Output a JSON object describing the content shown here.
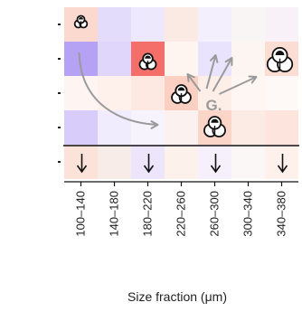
{
  "chart_data": {
    "type": "heatmap",
    "title": "",
    "xlabel": "Size fraction (μm)",
    "ylabel": "",
    "categories": [
      "100–140",
      "140–180",
      "180–220",
      "220–260",
      "260–300",
      "300–340",
      "340–380"
    ],
    "row_count": 5,
    "cells": [
      [
        "#fbd9cf",
        "#e4dcfb",
        "#eee8fd",
        "#fbeae4",
        "#f3effd",
        "#faf5f5",
        "#f8f1f7"
      ],
      [
        "#b6a2f4",
        "#e0d6fc",
        "#f46f6a",
        "#fef4f0",
        "#e9e3fd",
        "#fdf5f2",
        "#fcddd3"
      ],
      [
        "#fef4f1",
        "#fef1ec",
        "#fde9e2",
        "#fccfc3",
        "#fdeee8",
        "#fef6f3",
        "#fef9f7"
      ],
      [
        "#d8ccfa",
        "#f0ebfd",
        "#f7f3fd",
        "#fbf2f0",
        "#fcd5c9",
        "#fcebe4",
        "#fde4dc"
      ],
      [
        "#fce3d9",
        "#f8ece9",
        "#ece5fc",
        "#fdf1ec",
        "#f5f0fc",
        "#fbf7f7",
        "#fef1ec"
      ]
    ],
    "annotation": "G.",
    "colors": {
      "positive": "#f46f6a",
      "negative": "#b6a2f4",
      "arrow": "#9a9a9a"
    },
    "icons": [
      "foraminifera-icon",
      "downward-arrow-icon",
      "curved-arrow-icon"
    ]
  }
}
